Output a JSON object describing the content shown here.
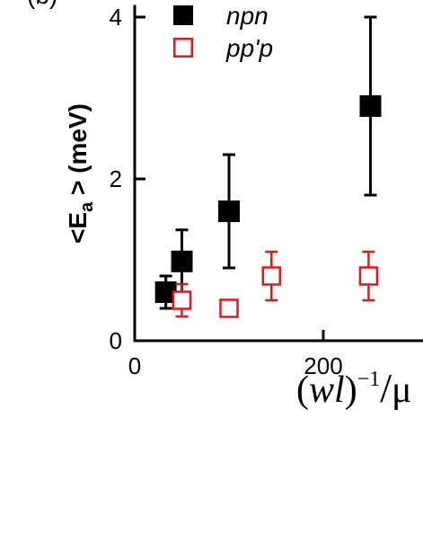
{
  "panel_label": "(b)",
  "chart_data": {
    "type": "scatter",
    "xlabel": "(wl)⁻¹/μ",
    "ylabel": "<E_a > (meV)",
    "xlim": [
      0,
      420
    ],
    "ylim": [
      0,
      4.15
    ],
    "x_ticks": [
      0,
      200
    ],
    "y_ticks": [
      0,
      2,
      4
    ],
    "legend_position": "top-left",
    "series": [
      {
        "name": "npn",
        "marker": "filled-square",
        "color": "#000000",
        "points": [
          {
            "x": 33,
            "y": 0.6,
            "yerr_low": 0.4,
            "yerr_high": 0.8
          },
          {
            "x": 50,
            "y": 0.98,
            "yerr_low": 0.6,
            "yerr_high": 1.37
          },
          {
            "x": 100,
            "y": 1.6,
            "yerr_low": 0.9,
            "yerr_high": 2.3
          },
          {
            "x": 250,
            "y": 2.9,
            "yerr_low": 1.8,
            "yerr_high": 4.0
          }
        ]
      },
      {
        "name": "pp'p",
        "marker": "open-square",
        "color": "#e8141c",
        "points": [
          {
            "x": 50,
            "y": 0.5,
            "yerr_low": 0.3,
            "yerr_high": 0.7
          },
          {
            "x": 100,
            "y": 0.4,
            "yerr_low": 0.4,
            "yerr_high": 0.4
          },
          {
            "x": 145,
            "y": 0.8,
            "yerr_low": 0.5,
            "yerr_high": 1.1
          },
          {
            "x": 248,
            "y": 0.8,
            "yerr_low": 0.5,
            "yerr_high": 1.1
          }
        ]
      }
    ]
  }
}
